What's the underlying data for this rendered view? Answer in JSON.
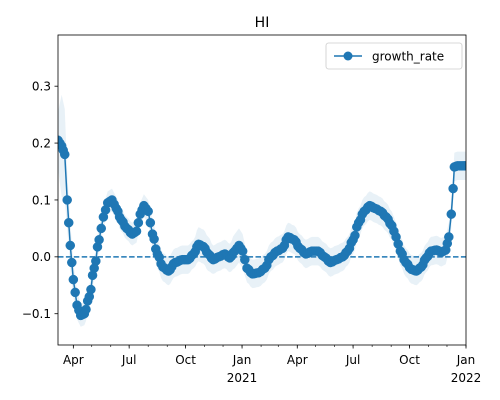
{
  "chart_data": {
    "type": "line",
    "title": "HI",
    "xlabel": "",
    "ylabel": "",
    "xlim": [
      "2020-03-07",
      "2022-01-01"
    ],
    "ylim": [
      -0.155,
      0.39
    ],
    "y_ticks": [
      -0.1,
      0.0,
      0.1,
      0.2,
      0.3
    ],
    "y_tick_labels": [
      "−0.1",
      "0.0",
      "0.1",
      "0.2",
      "0.3"
    ],
    "x_major_ticks": [
      {
        "date": "2020-04-01",
        "label": "Apr",
        "sublabel": ""
      },
      {
        "date": "2020-07-01",
        "label": "Jul",
        "sublabel": ""
      },
      {
        "date": "2020-10-01",
        "label": "Oct",
        "sublabel": ""
      },
      {
        "date": "2021-01-01",
        "label": "Jan",
        "sublabel": "2021"
      },
      {
        "date": "2021-04-01",
        "label": "Apr",
        "sublabel": ""
      },
      {
        "date": "2021-07-01",
        "label": "Jul",
        "sublabel": ""
      },
      {
        "date": "2021-10-01",
        "label": "Oct",
        "sublabel": ""
      },
      {
        "date": "2022-01-01",
        "label": "Jan",
        "sublabel": "2022"
      }
    ],
    "reference_line": {
      "y": 0.0,
      "style": "dashed"
    },
    "legend": {
      "position": "top-right",
      "entries": [
        "growth_rate"
      ]
    },
    "grid": false,
    "series": [
      {
        "name": "growth_rate",
        "color": "#1f77b4",
        "band_color": "#1f77b4",
        "anchors": [
          [
            "2020-03-07",
            0.205,
            0.05
          ],
          [
            "2020-03-13",
            0.195,
            0.09
          ],
          [
            "2020-03-18",
            0.18,
            0.08
          ],
          [
            "2020-03-22",
            0.1,
            0.05
          ],
          [
            "2020-03-27",
            0.02,
            0.04
          ],
          [
            "2020-04-01",
            -0.04,
            0.03
          ],
          [
            "2020-04-07",
            -0.085,
            0.025
          ],
          [
            "2020-04-13",
            -0.103,
            0.02
          ],
          [
            "2020-04-19",
            -0.1,
            0.02
          ],
          [
            "2020-04-27",
            -0.07,
            0.02
          ],
          [
            "2020-05-05",
            -0.02,
            0.02
          ],
          [
            "2020-05-13",
            0.03,
            0.02
          ],
          [
            "2020-05-20",
            0.07,
            0.02
          ],
          [
            "2020-05-27",
            0.095,
            0.02
          ],
          [
            "2020-06-03",
            0.1,
            0.02
          ],
          [
            "2020-06-10",
            0.085,
            0.02
          ],
          [
            "2020-06-18",
            0.065,
            0.02
          ],
          [
            "2020-06-27",
            0.05,
            0.02
          ],
          [
            "2020-07-06",
            0.04,
            0.02
          ],
          [
            "2020-07-13",
            0.045,
            0.02
          ],
          [
            "2020-07-19",
            0.075,
            0.02
          ],
          [
            "2020-07-25",
            0.09,
            0.02
          ],
          [
            "2020-08-01",
            0.08,
            0.02
          ],
          [
            "2020-08-08",
            0.04,
            0.025
          ],
          [
            "2020-08-16",
            0.005,
            0.025
          ],
          [
            "2020-08-25",
            -0.018,
            0.025
          ],
          [
            "2020-09-03",
            -0.025,
            0.025
          ],
          [
            "2020-09-14",
            -0.01,
            0.025
          ],
          [
            "2020-09-26",
            -0.005,
            0.025
          ],
          [
            "2020-10-05",
            -0.005,
            0.025
          ],
          [
            "2020-10-14",
            0.005,
            0.025
          ],
          [
            "2020-10-22",
            0.022,
            0.03
          ],
          [
            "2020-10-30",
            0.018,
            0.03
          ],
          [
            "2020-11-07",
            0.005,
            0.03
          ],
          [
            "2020-11-15",
            -0.005,
            0.025
          ],
          [
            "2020-11-24",
            0.0,
            0.025
          ],
          [
            "2020-12-04",
            0.005,
            0.025
          ],
          [
            "2020-12-12",
            -0.002,
            0.025
          ],
          [
            "2020-12-20",
            0.01,
            0.03
          ],
          [
            "2020-12-27",
            0.02,
            0.03
          ],
          [
            "2021-01-02",
            0.01,
            0.03
          ],
          [
            "2021-01-09",
            -0.02,
            0.025
          ],
          [
            "2021-01-18",
            -0.03,
            0.025
          ],
          [
            "2021-01-28",
            -0.028,
            0.025
          ],
          [
            "2021-02-07",
            -0.02,
            0.025
          ],
          [
            "2021-02-17",
            0.0,
            0.025
          ],
          [
            "2021-02-27",
            0.01,
            0.025
          ],
          [
            "2021-03-08",
            0.015,
            0.025
          ],
          [
            "2021-03-17",
            0.035,
            0.025
          ],
          [
            "2021-03-27",
            0.03,
            0.025
          ],
          [
            "2021-04-05",
            0.015,
            0.025
          ],
          [
            "2021-04-15",
            0.005,
            0.025
          ],
          [
            "2021-04-25",
            0.01,
            0.025
          ],
          [
            "2021-05-05",
            0.01,
            0.025
          ],
          [
            "2021-05-15",
            0.0,
            0.025
          ],
          [
            "2021-05-25",
            -0.01,
            0.025
          ],
          [
            "2021-06-04",
            -0.005,
            0.025
          ],
          [
            "2021-06-14",
            0.0,
            0.025
          ],
          [
            "2021-06-22",
            0.01,
            0.025
          ],
          [
            "2021-07-01",
            0.03,
            0.025
          ],
          [
            "2021-07-10",
            0.06,
            0.025
          ],
          [
            "2021-07-19",
            0.08,
            0.025
          ],
          [
            "2021-07-28",
            0.09,
            0.025
          ],
          [
            "2021-08-06",
            0.085,
            0.025
          ],
          [
            "2021-08-15",
            0.08,
            0.025
          ],
          [
            "2021-08-24",
            0.07,
            0.025
          ],
          [
            "2021-09-02",
            0.055,
            0.025
          ],
          [
            "2021-09-09",
            0.035,
            0.025
          ],
          [
            "2021-09-16",
            0.01,
            0.025
          ],
          [
            "2021-09-25",
            -0.01,
            0.025
          ],
          [
            "2021-10-04",
            -0.022,
            0.025
          ],
          [
            "2021-10-12",
            -0.025,
            0.025
          ],
          [
            "2021-10-20",
            -0.018,
            0.025
          ],
          [
            "2021-10-28",
            -0.002,
            0.025
          ],
          [
            "2021-11-05",
            0.01,
            0.025
          ],
          [
            "2021-11-14",
            0.012,
            0.025
          ],
          [
            "2021-11-22",
            0.008,
            0.025
          ],
          [
            "2021-11-29",
            0.012,
            0.025
          ],
          [
            "2021-12-04",
            0.035,
            0.025
          ],
          [
            "2021-12-08",
            0.075,
            0.025
          ],
          [
            "2021-12-11",
            0.12,
            0.025
          ],
          [
            "2021-12-13",
            0.158,
            0.025
          ],
          [
            "2021-12-18",
            0.16,
            0.025
          ],
          [
            "2021-12-27",
            0.16,
            0.025
          ],
          [
            "2022-01-01",
            0.16,
            0.025
          ]
        ]
      }
    ]
  }
}
